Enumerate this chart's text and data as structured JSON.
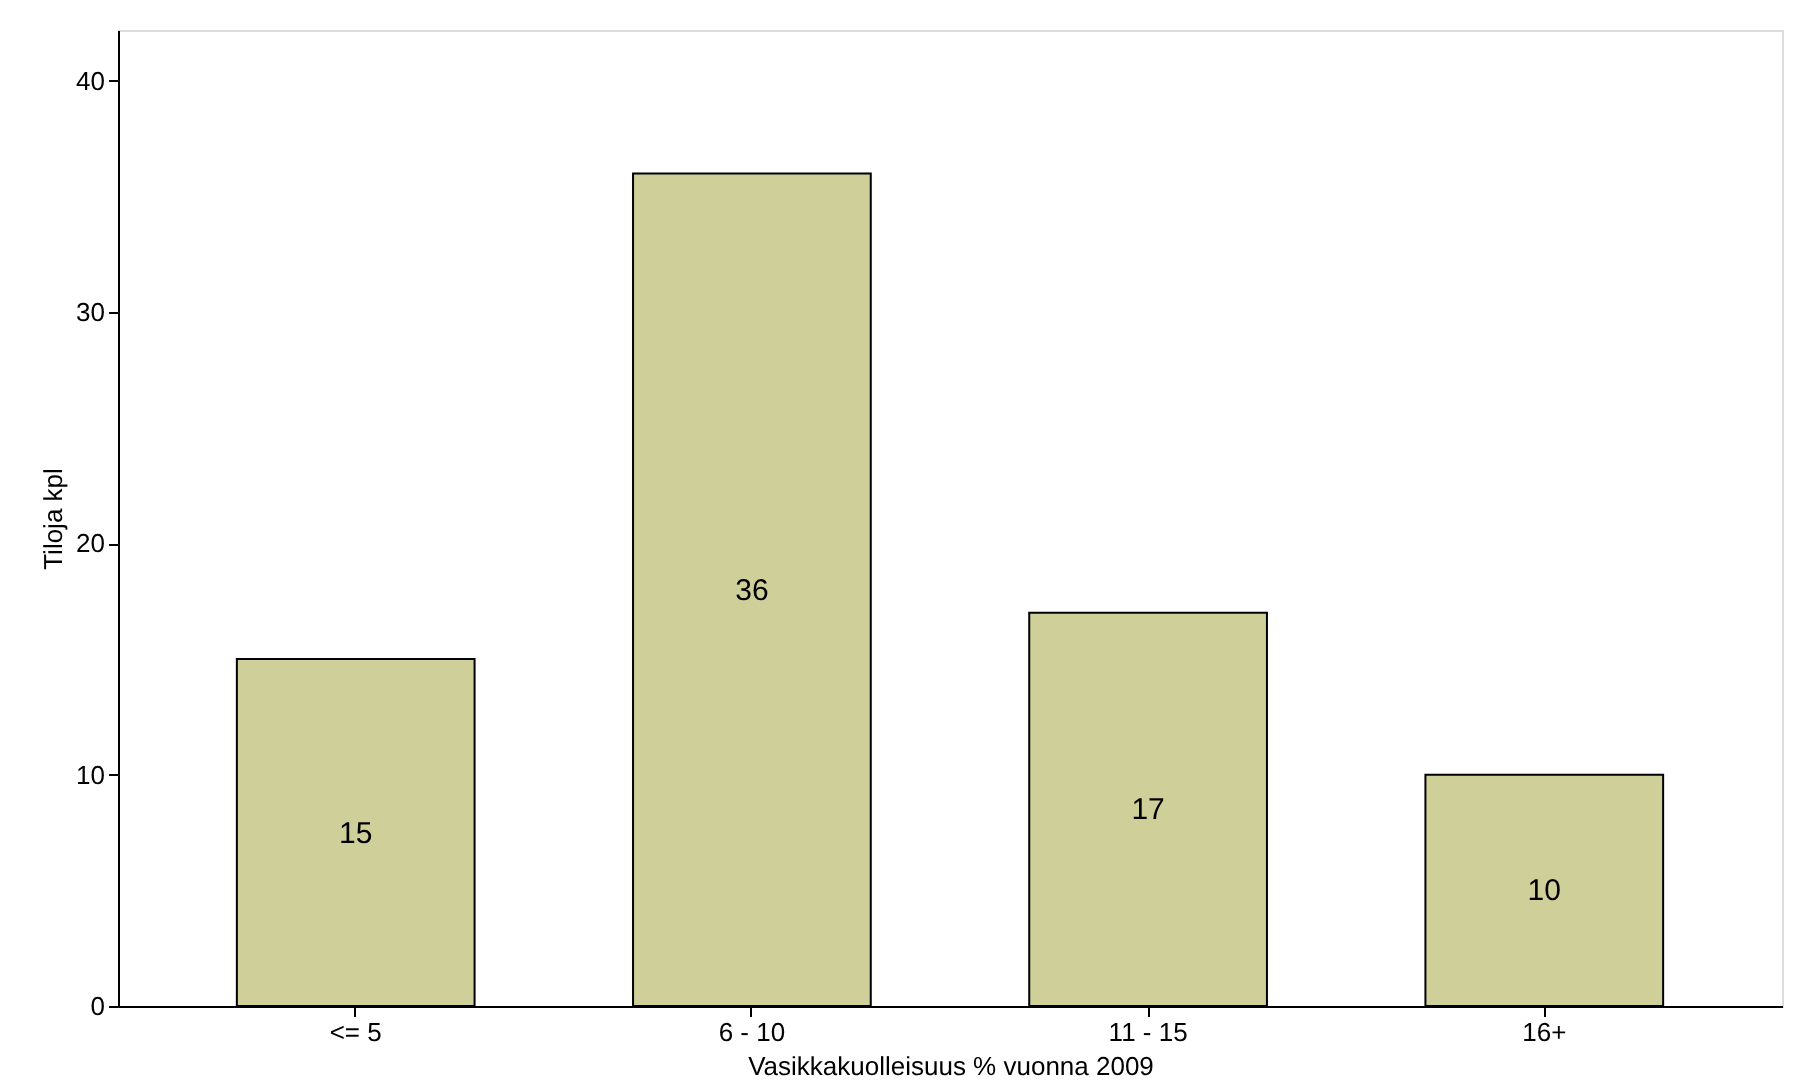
{
  "chart_data": {
    "type": "bar",
    "xlabel": "Vasikkakuolleisuus % vuonna 2009",
    "ylabel": "Tiloja kpl",
    "categories": [
      "<= 5",
      "6 - 10",
      "11 - 15",
      "16+"
    ],
    "values": [
      15,
      36,
      17,
      10
    ],
    "color": "#cfcf99",
    "ylim": [
      0,
      42.2
    ],
    "yticks": [
      0,
      10,
      20,
      30,
      40
    ],
    "grid": false,
    "data_labels": true
  }
}
